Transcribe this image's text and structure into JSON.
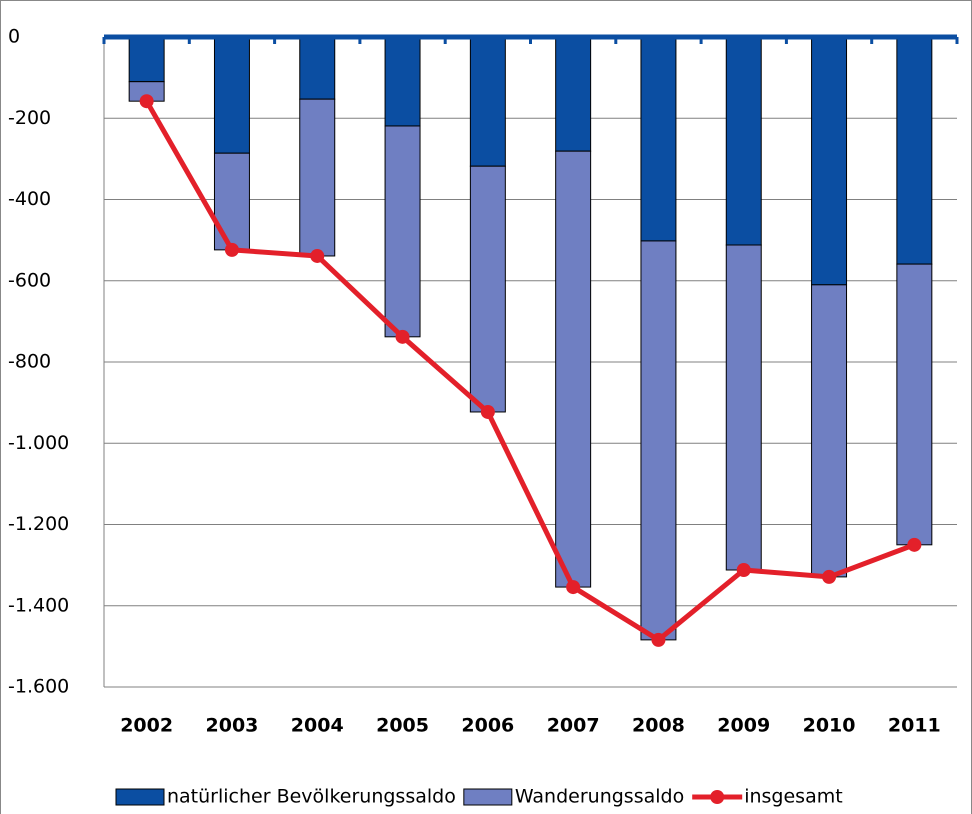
{
  "chart_data": {
    "type": "bar",
    "stacked": true,
    "categories": [
      "2002",
      "2003",
      "2004",
      "2005",
      "2006",
      "2007",
      "2008",
      "2009",
      "2010",
      "2011"
    ],
    "series": [
      {
        "name": "natürlicher Bevölkerungssaldo",
        "color": "#0b4ea2",
        "values": [
          -110,
          -286,
          -153,
          -219,
          -318,
          -281,
          -502,
          -512,
          -610,
          -559
        ]
      },
      {
        "name": "Wanderungssaldo",
        "color": "#6f7fc2",
        "values": [
          -48,
          -238,
          -386,
          -519,
          -605,
          -1073,
          -982,
          -800,
          -719,
          -691
        ]
      },
      {
        "name": "insgesamt",
        "color": "#e3202a",
        "type": "line",
        "values": [
          -158,
          -524,
          -539,
          -738,
          -923,
          -1354,
          -1484,
          -1312,
          -1329,
          -1250
        ]
      }
    ],
    "ylim": [
      -1600,
      0
    ],
    "yticks": [
      0,
      -200,
      -400,
      -600,
      -800,
      {
        "value": -1000,
        "label": "-1.000"
      },
      {
        "value": -1200,
        "label": "-1.200"
      },
      {
        "value": -1400,
        "label": "-1.400"
      },
      {
        "value": -1600,
        "label": "-1.600"
      }
    ],
    "grid": true,
    "legend": "bottom"
  }
}
